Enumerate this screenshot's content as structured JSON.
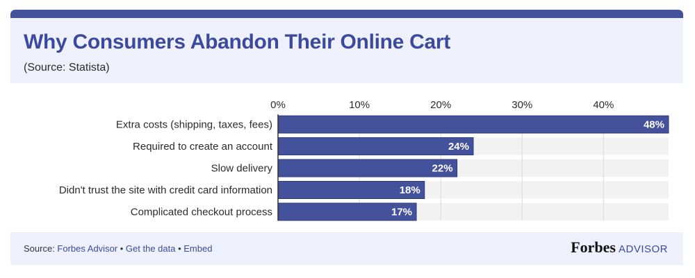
{
  "header": {
    "title": "Why Consumers Abandon Their Online Cart",
    "subtitle": "(Source: Statista)"
  },
  "chart_data": {
    "type": "bar",
    "orientation": "horizontal",
    "title": "Why Consumers Abandon Their Online Cart",
    "categories": [
      "Extra costs (shipping, taxes, fees)",
      "Required to create an account",
      "Slow delivery",
      "Didn't trust the site with credit card information",
      "Complicated checkout process"
    ],
    "values": [
      48,
      24,
      22,
      18,
      17
    ],
    "value_labels": [
      "48%",
      "24%",
      "22%",
      "18%",
      "17%"
    ],
    "xticks": [
      0,
      10,
      20,
      30,
      40
    ],
    "xtick_labels": [
      "0%",
      "10%",
      "20%",
      "30%",
      "40%"
    ],
    "xlim": [
      0,
      48
    ],
    "grid": true,
    "bar_color": "#44529c",
    "track_color": "#f2f2f2"
  },
  "footer": {
    "source_prefix": "Source: ",
    "source_link": "Forbes Advisor",
    "separator": " • ",
    "get_data": "Get the data",
    "embed": "Embed",
    "brand": "Forbes",
    "brand_suffix": "ADVISOR"
  }
}
